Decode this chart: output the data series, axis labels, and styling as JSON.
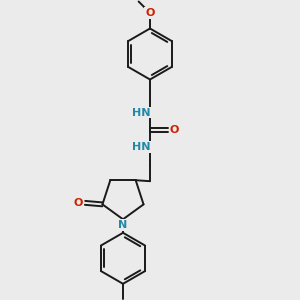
{
  "bg_color": "#ebebeb",
  "bond_color": "#1a1a1a",
  "bond_width": 1.4,
  "N_color": "#2288aa",
  "O_color": "#cc2200",
  "C_color": "#1a1a1a",
  "font_size_atom": 8.0,
  "font_size_small": 6.5,
  "xlim": [
    0,
    10
  ],
  "ylim": [
    0,
    10
  ]
}
